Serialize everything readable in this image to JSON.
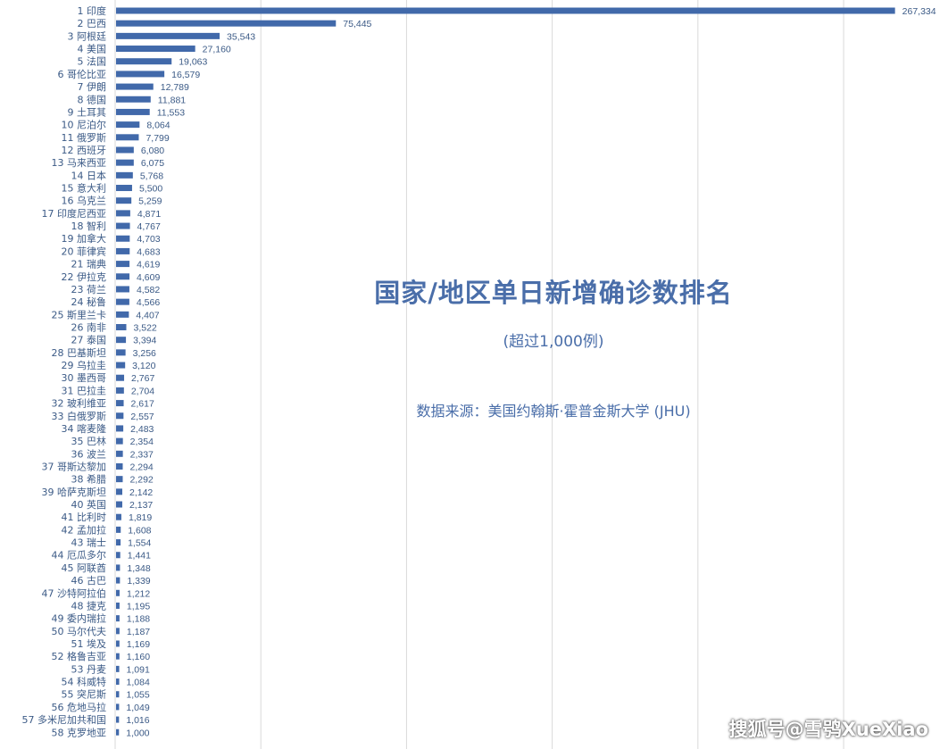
{
  "chart_data": {
    "type": "bar",
    "orientation": "horizontal",
    "title": "国家/地区单日新增确诊数排名",
    "subtitle": "(超过1,000例)",
    "source": "数据来源：美国约翰斯·霍普金斯大学 (JHU)",
    "grid": true,
    "xlim": [
      0,
      280000
    ],
    "categories": [
      "1 印度",
      "2 巴西",
      "3 阿根廷",
      "4 美国",
      "5 法国",
      "6 哥伦比亚",
      "7 伊朗",
      "8 德国",
      "9 土耳其",
      "10 尼泊尔",
      "11 俄罗斯",
      "12 西班牙",
      "13 马来西亚",
      "14 日本",
      "15 意大利",
      "16 乌克兰",
      "17 印度尼西亚",
      "18 智利",
      "19 加拿大",
      "20 菲律宾",
      "21 瑞典",
      "22 伊拉克",
      "23 荷兰",
      "24 秘鲁",
      "25 斯里兰卡",
      "26 南非",
      "27 泰国",
      "28 巴基斯坦",
      "29 乌拉圭",
      "30 墨西哥",
      "31 巴拉圭",
      "32 玻利维亚",
      "33 白俄罗斯",
      "34 喀麦隆",
      "35 巴林",
      "36 波兰",
      "37 哥斯达黎加",
      "38 希腊",
      "39 哈萨克斯坦",
      "40 英国",
      "41 比利时",
      "42 孟加拉",
      "43 瑞士",
      "44 厄瓜多尔",
      "45 阿联酋",
      "46 古巴",
      "47 沙特阿拉伯",
      "48 捷克",
      "49 委内瑞拉",
      "50 马尔代夫",
      "51 埃及",
      "52 格鲁吉亚",
      "53 丹麦",
      "54 科威特",
      "55 突尼斯",
      "56 危地马拉",
      "57 多米尼加共和国",
      "58 克罗地亚"
    ],
    "values": [
      267334,
      75445,
      35543,
      27160,
      19063,
      16579,
      12789,
      11881,
      11553,
      8064,
      7799,
      6080,
      6075,
      5768,
      5500,
      5259,
      4871,
      4767,
      4703,
      4683,
      4619,
      4609,
      4582,
      4566,
      4407,
      3522,
      3394,
      3256,
      3120,
      2767,
      2704,
      2617,
      2557,
      2483,
      2354,
      2337,
      2294,
      2292,
      2142,
      2137,
      1819,
      1608,
      1554,
      1441,
      1348,
      1339,
      1212,
      1195,
      1188,
      1187,
      1169,
      1160,
      1091,
      1084,
      1055,
      1049,
      1016,
      1000
    ],
    "value_labels": [
      "267,334",
      "75,445",
      "35,543",
      "27,160",
      "19,063",
      "16,579",
      "12,789",
      "11,881",
      "11,553",
      "8,064",
      "7,799",
      "6,080",
      "6,075",
      "5,768",
      "5,500",
      "5,259",
      "4,871",
      "4,767",
      "4,703",
      "4,683",
      "4,619",
      "4,609",
      "4,582",
      "4,566",
      "4,407",
      "3,522",
      "3,394",
      "3,256",
      "3,120",
      "2,767",
      "2,704",
      "2,617",
      "2,557",
      "2,483",
      "2,354",
      "2,337",
      "2,294",
      "2,292",
      "2,142",
      "2,137",
      "1,819",
      "1,608",
      "1,554",
      "1,441",
      "1,348",
      "1,339",
      "1,212",
      "1,195",
      "1,188",
      "1,187",
      "1,169",
      "1,160",
      "1,091",
      "1,084",
      "1,055",
      "1,049",
      "1,016",
      "1,000"
    ],
    "xlabel": "",
    "ylabel": "",
    "colors": {
      "bar": "#4169aa",
      "text": "#4a6ea9",
      "grid": "#d9d9d9"
    }
  },
  "watermark": "搜狐号@雪鸮XueXiao"
}
